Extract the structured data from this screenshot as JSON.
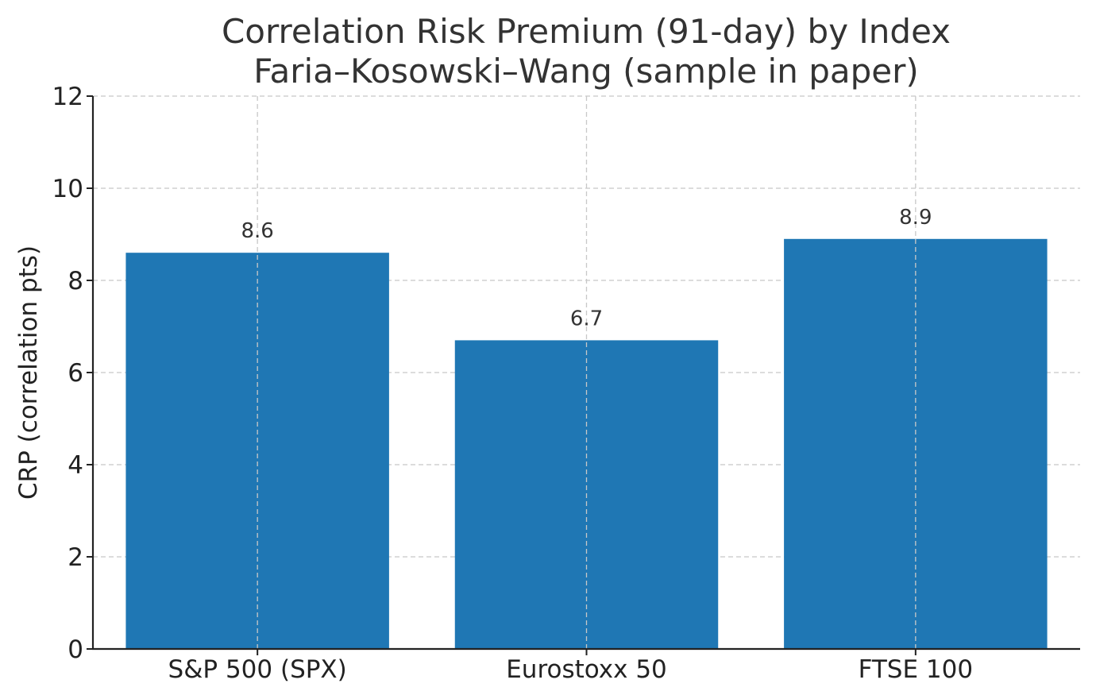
{
  "chart_data": {
    "type": "bar",
    "title": "Correlation Risk Premium (91-day) by Index",
    "subtitle": "Faria–Kosowski–Wang (sample in paper)",
    "xlabel": "",
    "ylabel": "CRP (correlation pts)",
    "categories": [
      "S&P 500 (SPX)",
      "Eurostoxx 50",
      "FTSE 100"
    ],
    "values": [
      8.6,
      6.7,
      8.9
    ],
    "data_labels": [
      "8.6",
      "6.7",
      "8.9"
    ],
    "ylim": [
      0,
      12
    ],
    "yticks": [
      0,
      2,
      4,
      6,
      8,
      10,
      12
    ],
    "grid": true,
    "legend": "none",
    "bar_color": "#1f77b4"
  }
}
